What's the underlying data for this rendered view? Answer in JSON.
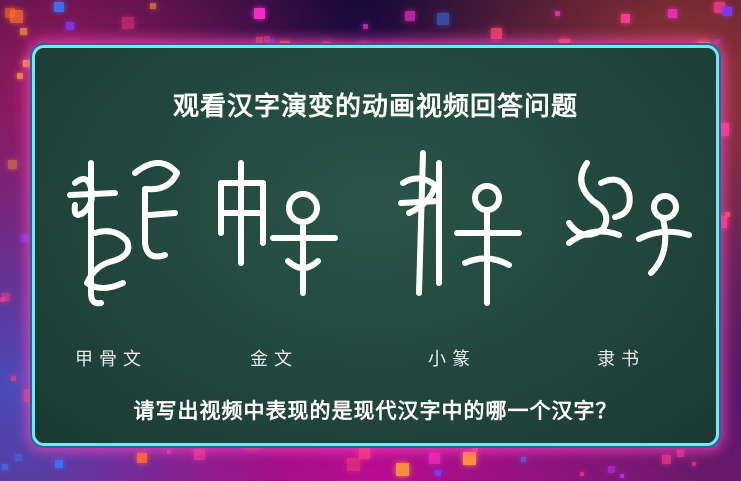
{
  "board": {
    "title": "观看汉字演变的动画视频回答问题",
    "scripts": [
      {
        "label": "甲骨文",
        "glyph": "ancient-glyph-1"
      },
      {
        "label": "金文",
        "glyph": "ancient-glyph-2"
      },
      {
        "label": "小篆",
        "glyph": "ancient-glyph-3"
      },
      {
        "label": "隶书",
        "glyph": "ancient-glyph-4"
      }
    ],
    "question": "请写出视频中表现的是现代汉字中的哪一个汉字？"
  },
  "colors": {
    "board": "#21473d",
    "frame": "#78e7f5",
    "glow": "#ff46be",
    "text": "#ffffff"
  }
}
